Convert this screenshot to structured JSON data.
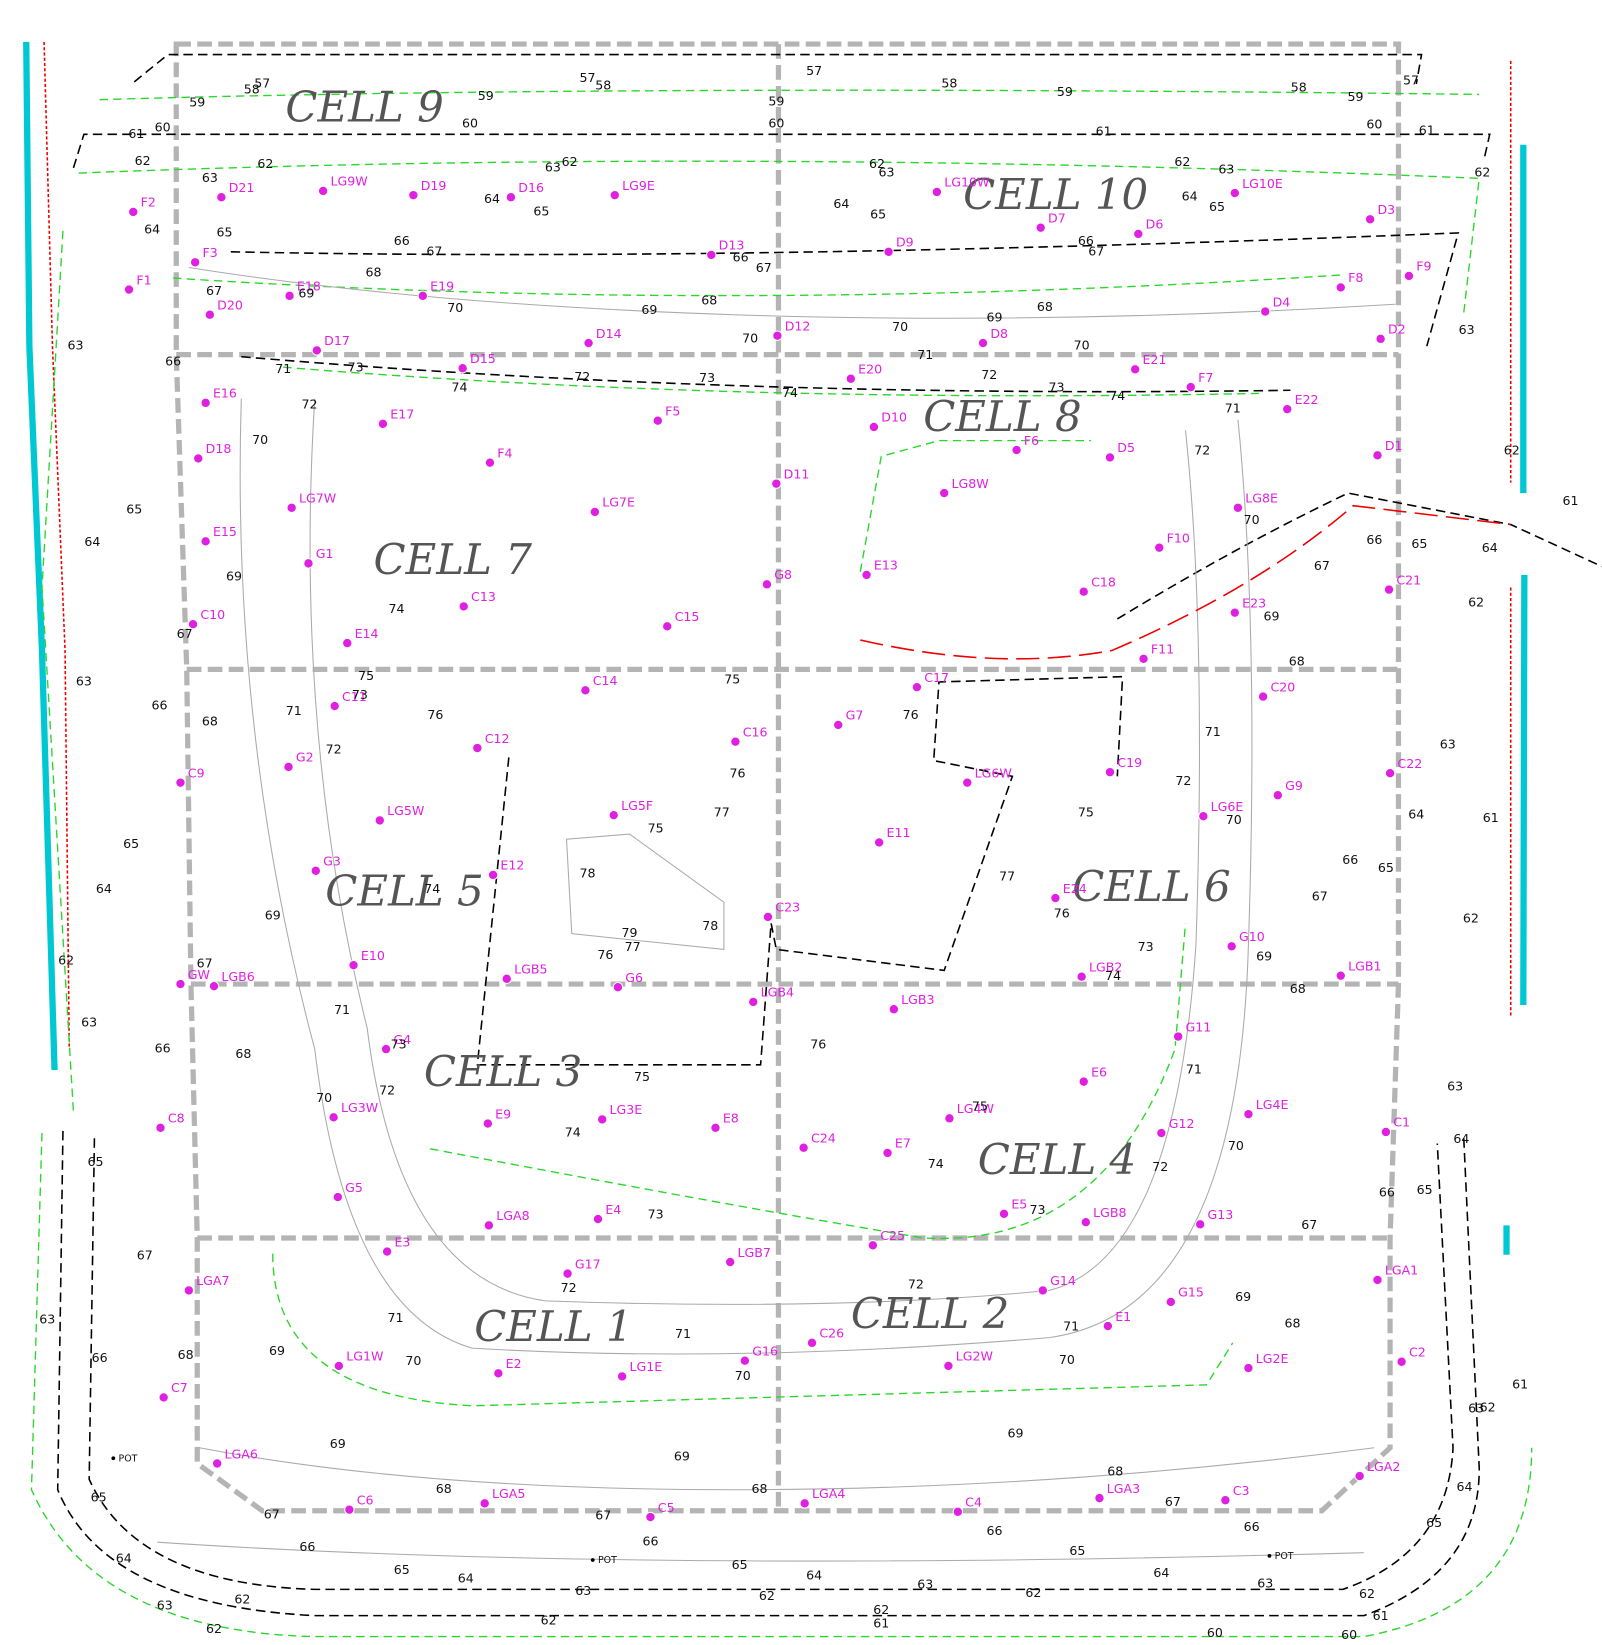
{
  "cells": [
    "CELL 9",
    "CELL 10",
    "CELL 8",
    "CELL 7",
    "CELL 5",
    "CELL 6",
    "CELL 3",
    "CELL 4",
    "CELL 1",
    "CELL 2"
  ],
  "sampling_points": [
    "D21",
    "LG9W",
    "D19",
    "D16",
    "LG9E",
    "F2",
    "LG10W",
    "LG10E",
    "D7",
    "D6",
    "D3",
    "D13",
    "D9",
    "F3",
    "F1",
    "E18",
    "E19",
    "D20",
    "D14",
    "D12",
    "D8",
    "D4",
    "F8",
    "F9",
    "D2",
    "D17",
    "D15",
    "E20",
    "E21",
    "F7",
    "E22",
    "E16",
    "E17",
    "F5",
    "D10",
    "F6",
    "D1",
    "D18",
    "F4",
    "D5",
    "D11",
    "LG8W",
    "LG7W",
    "LG7E",
    "LG8E",
    "F10",
    "E15",
    "G1",
    "G8",
    "E13",
    "C18",
    "C21",
    "E23",
    "C13",
    "C15",
    "C10",
    "E14",
    "F11",
    "C14",
    "C17",
    "C20",
    "C11",
    "G7",
    "C16",
    "C12",
    "C19",
    "C22",
    "C9",
    "G2",
    "LG6W",
    "G9",
    "LG5W",
    "LG5F",
    "LG6E",
    "E11",
    "E12",
    "G3",
    "C23",
    "E24",
    "G10",
    "E10",
    "LGB2",
    "LGB1",
    "GW",
    "LGB6",
    "LGB5",
    "G6",
    "LGB4",
    "LGB3",
    "G4",
    "G11",
    "E6",
    "LG4E",
    "C8",
    "LG3W",
    "LG3E",
    "E9",
    "E8",
    "LG4W",
    "G12",
    "C1",
    "C24",
    "E7",
    "G5",
    "E4",
    "LGA8",
    "E5",
    "LGB8",
    "G13",
    "E3",
    "C25",
    "G17",
    "LGB7",
    "G14",
    "LGA7",
    "LGA1",
    "G15",
    "E1",
    "C26",
    "G16",
    "LG1E",
    "E2",
    "LG1W",
    "LG2W",
    "C2",
    "LG2E",
    "C7",
    "LGA6",
    "LGA2",
    "LGA5",
    "LGA4",
    "LGA3",
    "C6",
    "C4",
    "C3",
    "C5"
  ],
  "contour_labels": [
    57,
    57,
    57,
    57,
    58,
    58,
    58,
    58,
    59,
    59,
    59,
    59,
    59,
    60,
    60,
    60,
    60,
    61,
    61,
    61,
    62,
    62,
    62,
    62,
    62,
    62,
    63,
    63,
    63,
    63,
    64,
    64,
    64,
    64,
    65,
    65,
    65,
    65,
    66,
    66,
    66,
    67,
    67,
    67,
    67,
    68,
    68,
    68,
    69,
    69,
    69,
    70,
    70,
    70,
    70,
    71,
    71,
    72,
    72,
    72,
    73,
    73,
    73,
    74,
    74,
    74,
    63,
    64,
    65,
    66,
    67,
    68,
    69,
    70,
    66,
    65,
    64,
    63,
    62,
    63,
    66,
    67,
    68,
    69,
    71,
    72,
    73,
    74,
    70,
    71,
    72,
    73,
    74,
    75,
    76,
    75,
    76,
    77,
    75,
    78,
    79,
    77,
    76,
    78,
    76,
    75,
    74,
    74,
    75,
    73,
    73,
    72,
    72,
    71,
    71,
    71,
    70,
    70,
    70,
    69,
    76,
    77,
    76,
    75,
    74,
    73,
    72,
    71,
    70,
    69,
    68,
    67,
    66,
    65,
    64,
    63,
    62,
    61,
    72,
    71,
    70,
    69,
    68,
    67,
    66,
    65,
    64,
    63,
    62,
    61,
    62,
    71,
    72,
    70,
    69,
    68,
    67,
    66,
    65,
    64,
    63,
    62,
    63,
    61,
    65,
    64,
    65,
    67,
    68,
    66,
    63,
    69,
    69,
    69,
    68,
    68,
    68,
    67,
    67,
    67,
    66,
    66,
    66,
    66,
    65,
    65,
    65,
    64,
    64,
    64,
    63,
    63,
    63,
    62,
    62,
    62,
    62,
    61,
    61,
    60,
    60,
    62,
    62,
    62,
    63,
    64,
    65
  ],
  "pot_labels": [
    "POT",
    "POT",
    "POT"
  ]
}
